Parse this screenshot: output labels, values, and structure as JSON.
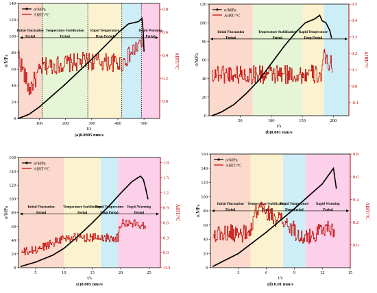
{
  "chart_data": [
    {
      "type": "line",
      "caption": "(a)0.0005 mm/s",
      "xlabel": "t/s",
      "ylabel": "σ/MPa",
      "y2label": "AIRT/°C",
      "xlim": [
        20,
        560
      ],
      "ylim": [
        0,
        140
      ],
      "y2lim": [
        -0.15,
        0.85
      ],
      "xticks": [
        100,
        200,
        300,
        400,
        500
      ],
      "yticks": [
        0,
        20,
        40,
        60,
        80,
        100,
        120,
        140
      ],
      "y2ticks": [
        0.0,
        0.2,
        0.4,
        0.6,
        0.8
      ],
      "legend": [
        "σ/MPa",
        "AIRT/°C"
      ],
      "regions": [
        {
          "x0": 20,
          "x1": 110,
          "color": "#fbd9cc",
          "label": [
            "Initial Fluctuation",
            "Period"
          ]
        },
        {
          "x0": 110,
          "x1": 285,
          "color": "#e6f5d6",
          "label": [
            "Temperature Stabilization",
            "Period"
          ]
        },
        {
          "x0": 285,
          "x1": 415,
          "color": "#fbf3cf",
          "label": [
            "Rapid Temperature",
            "Drop Period"
          ]
        },
        {
          "x0": 415,
          "x1": 490,
          "color": "#cdeef6",
          "label": []
        },
        {
          "x0": 490,
          "x1": 560,
          "color": "#fbd0e8",
          "label": [
            "Rapid Warming",
            "Period"
          ]
        }
      ],
      "dividers": [
        110,
        285,
        415,
        490
      ],
      "period_line_y": 100,
      "stress": {
        "x": [
          20,
          60,
          100,
          150,
          200,
          250,
          300,
          350,
          400,
          440,
          480,
          492,
          497,
          500
        ],
        "y": [
          0,
          5,
          14,
          28,
          42,
          57,
          72,
          88,
          104,
          115,
          118,
          122,
          105,
          82
        ]
      },
      "airt": {
        "x": [
          20,
          25,
          60,
          110,
          280,
          415,
          485,
          500
        ],
        "y": [
          0.4,
          0.35,
          0.1,
          0.3,
          0.35,
          0.33,
          0.5,
          0.5
        ],
        "noise": 0.08
      }
    },
    {
      "type": "line",
      "caption": "(b)0.001 mm/s",
      "xlabel": "t/s",
      "ylabel": "σ/MPa",
      "y2label": "AIRT/°C",
      "xlim": [
        0,
        225
      ],
      "ylim": [
        0,
        120
      ],
      "y2lim": [
        -0.18,
        0.5
      ],
      "xticks": [
        50,
        100,
        150,
        200
      ],
      "yticks": [
        0,
        20,
        40,
        60,
        80,
        100,
        120
      ],
      "y2ticks": [
        -0.1,
        0.0,
        0.1,
        0.2,
        0.3,
        0.4,
        0.5
      ],
      "legend": [
        "σ/MPa",
        "AIRT/°C"
      ],
      "regions": [
        {
          "x0": 0,
          "x1": 70,
          "color": "#fbd9cc",
          "label": [
            "Initial Fluctuation",
            "Period"
          ]
        },
        {
          "x0": 70,
          "x1": 150,
          "color": "#e6f5d6",
          "label": [
            "Temperature Stabilization",
            "Period"
          ]
        },
        {
          "x0": 150,
          "x1": 185,
          "color": "#fbf3cf",
          "label": [
            "Rapid Temperature",
            "Drop Period"
          ]
        },
        {
          "x0": 185,
          "x1": 225,
          "color": "#cdeef6",
          "label": []
        }
      ],
      "dividers": [],
      "period_line_y": 84,
      "stress": {
        "x": [
          5,
          20,
          40,
          60,
          80,
          100,
          120,
          140,
          155,
          170,
          178,
          182,
          188,
          194,
          197
        ],
        "y": [
          0,
          4,
          12,
          24,
          38,
          56,
          74,
          90,
          100,
          104,
          108,
          102,
          100,
          92,
          84
        ]
      },
      "airt": {
        "x": [
          5,
          60,
          180,
          185,
          198
        ],
        "y": [
          0.08,
          0.07,
          0.07,
          0.17,
          0.13
        ],
        "noise": 0.06
      }
    },
    {
      "type": "line",
      "caption": "(c)0.005 mm/s",
      "xlabel": "t/s",
      "ylabel": "σ/MPa",
      "y2label": "AIRT/°C",
      "xlim": [
        2,
        27
      ],
      "ylim": [
        0,
        160
      ],
      "y2lim": [
        -0.3,
        1.9
      ],
      "xticks": [
        5,
        10,
        15,
        20,
        25
      ],
      "yticks": [
        0,
        20,
        40,
        60,
        80,
        100,
        120,
        140,
        160
      ],
      "y2ticks": [
        -0.3,
        0.0,
        0.3,
        0.6,
        0.9,
        1.2,
        1.5,
        1.8
      ],
      "legend": [
        "σ/MPa",
        "AIRT/°C"
      ],
      "regions": [
        {
          "x0": 2,
          "x1": 10,
          "color": "#fbd9cc",
          "label": [
            "Initial Fluctuation",
            "Period"
          ]
        },
        {
          "x0": 10,
          "x1": 16.5,
          "color": "#fbf3cf",
          "label": [
            "Temperature Stabilization",
            "Period"
          ]
        },
        {
          "x0": 16.5,
          "x1": 19.5,
          "color": "#cdeef6",
          "label": [
            "Rapid Temperature",
            "Drop Period"
          ]
        },
        {
          "x0": 19.5,
          "x1": 27,
          "color": "#fbd0e8",
          "label": [
            "Rapid Warming",
            "Period"
          ]
        }
      ],
      "dividers": [],
      "period_line_y": 80,
      "stress": {
        "x": [
          2.5,
          5,
          8,
          10,
          12,
          15,
          18,
          20,
          22,
          23.5,
          24,
          24.4,
          24.8
        ],
        "y": [
          2,
          8,
          18,
          28,
          42,
          65,
          90,
          108,
          125,
          133,
          128,
          115,
          100
        ]
      },
      "airt": {
        "x": [
          2.5,
          5,
          10,
          19.5,
          20,
          24.5
        ],
        "y": [
          0.0,
          0.05,
          0.3,
          0.3,
          0.6,
          0.55
        ],
        "noise": 0.09
      }
    },
    {
      "type": "line",
      "caption": "(d) 0.01 mm/s",
      "xlabel": "t/s",
      "ylabel": "σ/MPa",
      "y2label": "AIRT/°C",
      "xlim": [
        0,
        15
      ],
      "ylim": [
        0,
        160
      ],
      "y2lim": [
        -0.2,
        0.8
      ],
      "xticks": [
        3,
        6,
        9,
        12,
        15
      ],
      "yticks": [
        0,
        20,
        40,
        60,
        80,
        100,
        120,
        140,
        160
      ],
      "y2ticks": [
        0.0,
        0.2,
        0.4,
        0.6,
        0.8
      ],
      "legend": [
        "σ/MPa",
        "AIRT/°C"
      ],
      "regions": [
        {
          "x0": 0,
          "x1": 4.3,
          "color": "#fbd9cc",
          "label": [
            "Initial Fluctuation",
            "Period"
          ]
        },
        {
          "x0": 4.3,
          "x1": 7.8,
          "color": "#fbf3cf",
          "label": [
            "Temperature Stabilization",
            "Period"
          ]
        },
        {
          "x0": 7.8,
          "x1": 10.2,
          "color": "#cdeef6",
          "label": [
            "Rapid Temperature",
            "Drop Period"
          ]
        },
        {
          "x0": 10.2,
          "x1": 15,
          "color": "#fbd0e8",
          "label": [
            "Rapid Warming",
            "Period"
          ]
        }
      ],
      "dividers": [],
      "period_line_y": 82,
      "stress": {
        "x": [
          0.3,
          3,
          6,
          9,
          12,
          13.2,
          13.5
        ],
        "y": [
          2,
          20,
          50,
          83,
          118,
          140,
          112
        ]
      },
      "airt": {
        "x": [
          0.3,
          4.3,
          5,
          7.8,
          10.2,
          12,
          13.3
        ],
        "y": [
          0.1,
          0.1,
          0.33,
          0.2,
          0.05,
          0.15,
          0.15
        ],
        "noise": 0.08
      }
    }
  ]
}
